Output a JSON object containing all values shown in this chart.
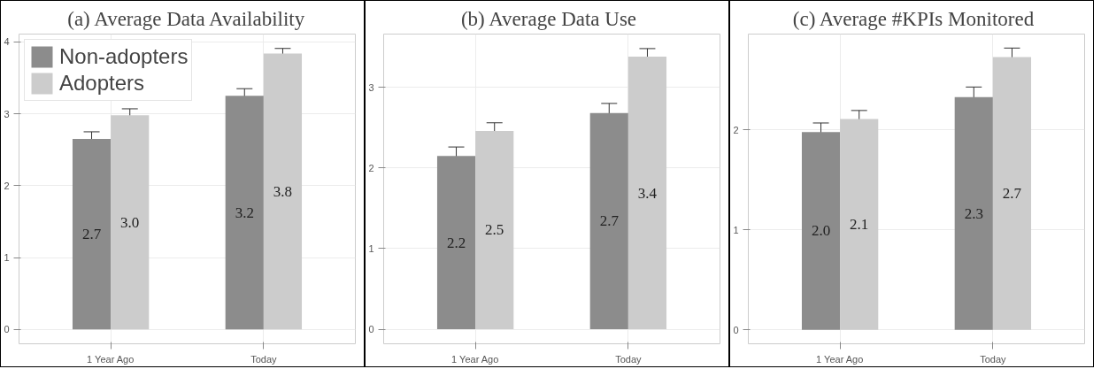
{
  "chart_data": [
    {
      "type": "bar",
      "title": "(a) Average Data Availability",
      "categories": [
        "1 Year Ago",
        "Today"
      ],
      "ylim": [
        -0.2,
        4.11
      ],
      "yticks": [
        0,
        1,
        2,
        3,
        4
      ],
      "grid": true,
      "legend": "top left",
      "series": [
        {
          "name": "Non-adopters",
          "color": "#8c8c8c",
          "values": [
            2.65,
            3.25
          ],
          "errors": [
            0.1,
            0.1
          ],
          "value_labels": [
            "2.7",
            "3.2"
          ]
        },
        {
          "name": "Adopters",
          "color": "#cccccc",
          "values": [
            2.98,
            3.84
          ],
          "errors": [
            0.09,
            0.07
          ],
          "value_labels": [
            "3.0",
            "3.8"
          ]
        }
      ]
    },
    {
      "type": "bar",
      "title": "(b)  Average Data Use",
      "categories": [
        "1 Year Ago",
        "Today"
      ],
      "ylim": [
        -0.18,
        3.66
      ],
      "yticks": [
        0,
        1,
        2,
        3
      ],
      "grid": true,
      "series": [
        {
          "color": "#8c8c8c",
          "values": [
            2.15,
            2.68
          ],
          "errors": [
            0.11,
            0.12
          ],
          "value_labels": [
            "2.2",
            "2.7"
          ]
        },
        {
          "color": "#cccccc",
          "values": [
            2.46,
            3.38
          ],
          "errors": [
            0.1,
            0.1
          ],
          "value_labels": [
            "2.5",
            "3.4"
          ]
        }
      ]
    },
    {
      "type": "bar",
      "title": "(c)  Average #KPIs Monitored",
      "categories": [
        "1 Year Ago",
        "Today"
      ],
      "ylim": [
        -0.14,
        2.96
      ],
      "yticks": [
        0,
        1,
        2
      ],
      "grid": true,
      "series": [
        {
          "color": "#8c8c8c",
          "values": [
            1.98,
            2.33
          ],
          "errors": [
            0.09,
            0.1
          ],
          "value_labels": [
            "2.0",
            "2.3"
          ]
        },
        {
          "color": "#cccccc",
          "values": [
            2.11,
            2.73
          ],
          "errors": [
            0.085,
            0.09
          ],
          "value_labels": [
            "2.1",
            "2.7"
          ]
        }
      ]
    }
  ]
}
